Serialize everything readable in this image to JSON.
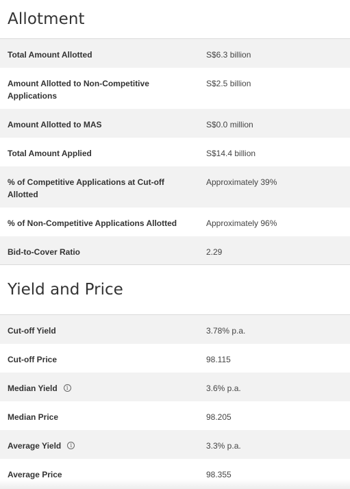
{
  "allotment": {
    "title": "Allotment",
    "rows": [
      {
        "label": "Total Amount Allotted",
        "value": "S$6.3 billion"
      },
      {
        "label": "Amount Allotted to Non-Competitive Applications",
        "value": "S$2.5 billion"
      },
      {
        "label": "Amount Allotted to MAS",
        "value": "S$0.0 million"
      },
      {
        "label": "Total Amount Applied",
        "value": "S$14.4 billion"
      },
      {
        "label": "% of Competitive Applications at Cut-off Allotted",
        "value": "Approximately 39%"
      },
      {
        "label": "% of Non-Competitive Applications Allotted",
        "value": "Approximately 96%"
      },
      {
        "label": "Bid-to-Cover Ratio",
        "value": "2.29"
      }
    ]
  },
  "yield_price": {
    "title": "Yield and Price",
    "rows": [
      {
        "label": "Cut-off Yield",
        "value": "3.78% p.a.",
        "info": false
      },
      {
        "label": "Cut-off Price",
        "value": "98.115",
        "info": false
      },
      {
        "label": "Median Yield",
        "value": "3.6% p.a.",
        "info": true
      },
      {
        "label": "Median Price",
        "value": "98.205",
        "info": false
      },
      {
        "label": "Average Yield",
        "value": "3.3% p.a.",
        "info": true
      },
      {
        "label": "Average Price",
        "value": "98.355",
        "info": false
      }
    ]
  },
  "icons": {
    "info_glyph": "i"
  },
  "colors": {
    "row_shade": "#f2f2f2",
    "divider": "#d9d9d9",
    "text": "#333333"
  }
}
